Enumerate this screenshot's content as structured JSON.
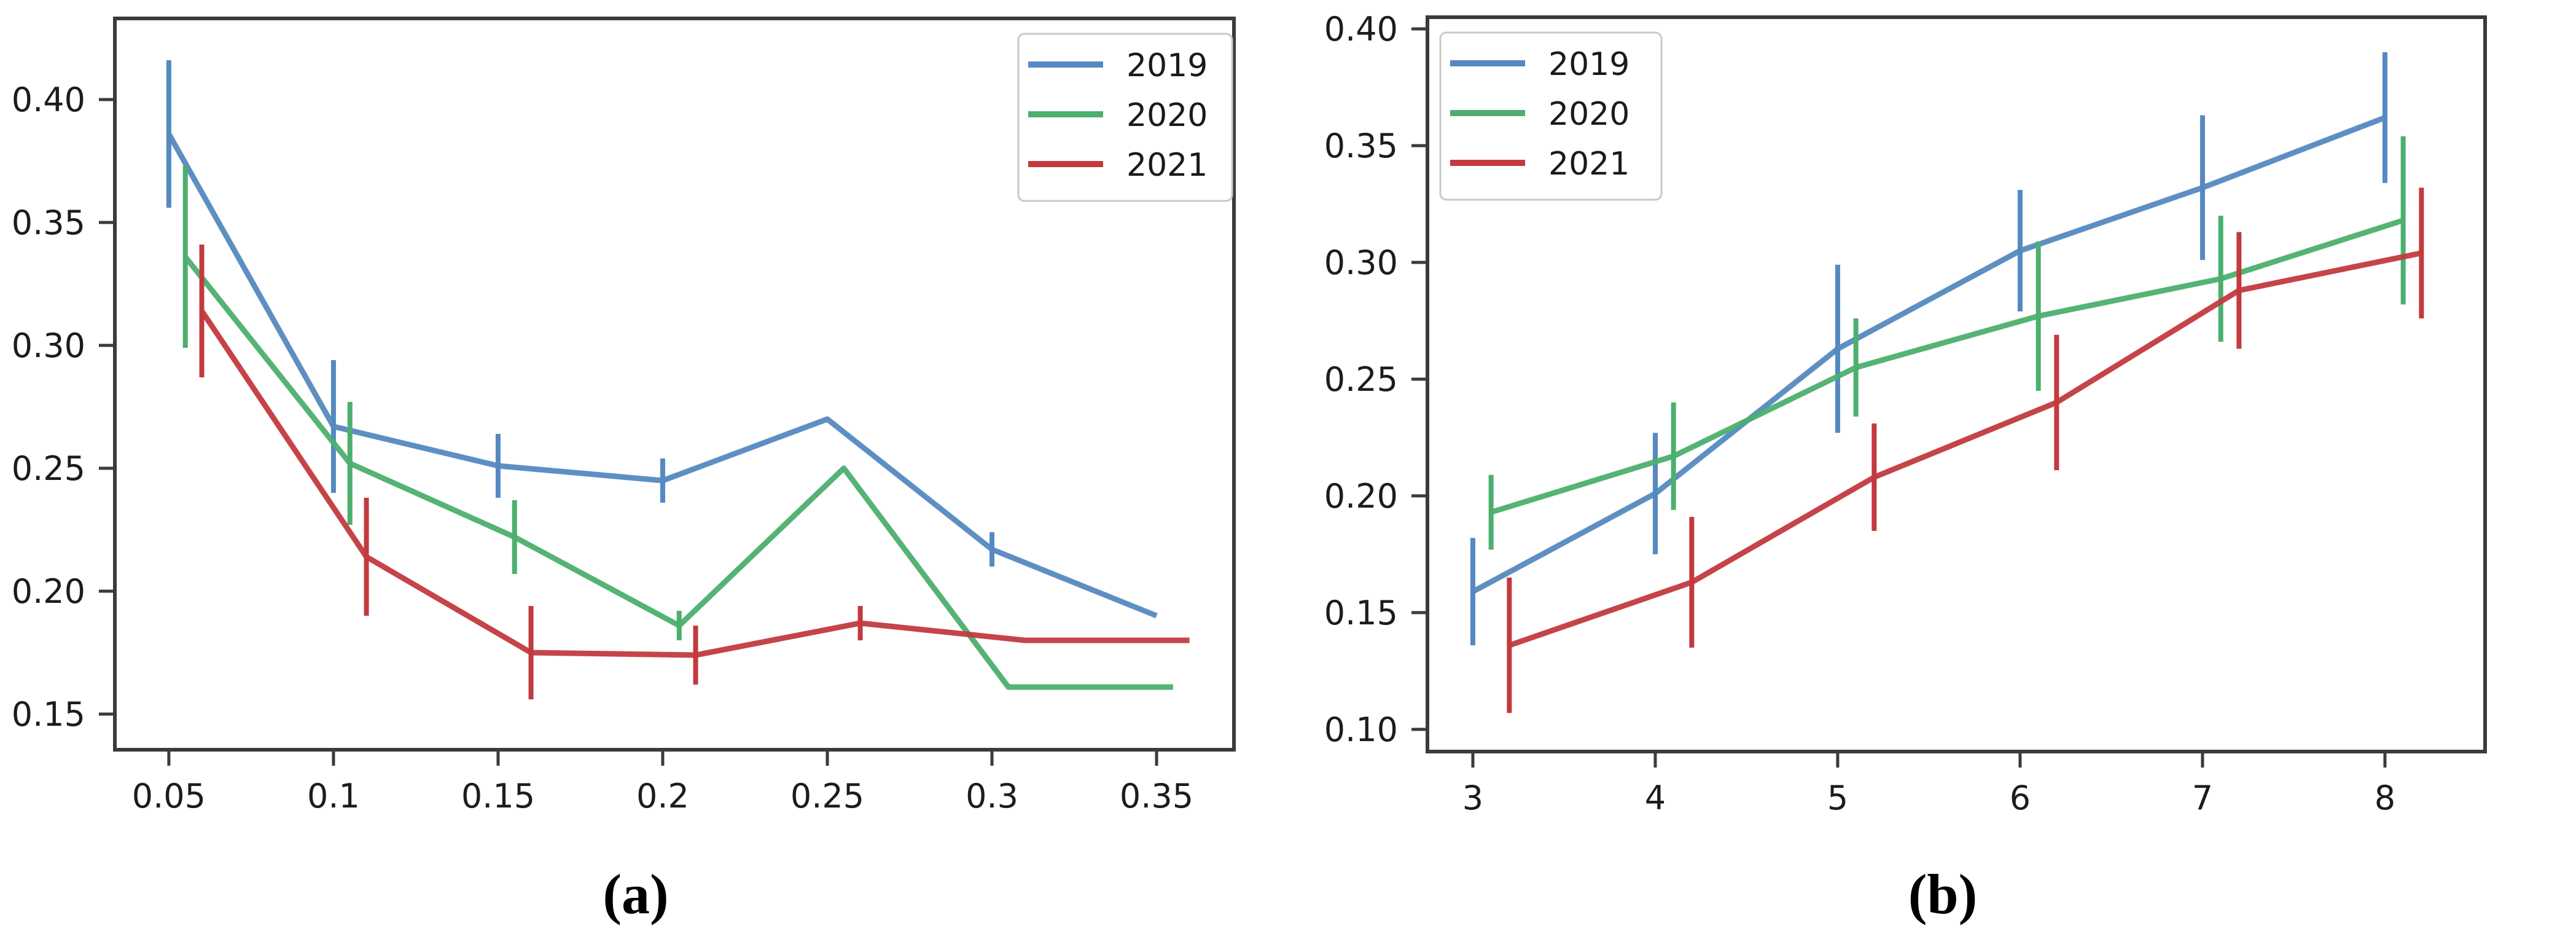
{
  "figure": {
    "background": "#ffffff",
    "axis_color": "#3b3b3b",
    "tick_label_color": "#1c1c1c",
    "legend_border_color": "#c9c9c9",
    "captions": {
      "a": "(a)",
      "b": "(b)"
    }
  },
  "chart_data": [
    {
      "id": "a",
      "type": "line",
      "caption": "(a)",
      "grid": false,
      "xlim": [
        0.0336,
        0.3735
      ],
      "ylim": [
        0.1355,
        0.433
      ],
      "xticks": [
        0.05,
        0.1,
        0.15,
        0.2,
        0.25,
        0.3,
        0.35
      ],
      "xtick_labels": [
        "0.05",
        "0.1",
        "0.15",
        "0.2",
        "0.25",
        "0.3",
        "0.35"
      ],
      "yticks": [
        0.15,
        0.2,
        0.25,
        0.3,
        0.35,
        0.4
      ],
      "ytick_labels": [
        "0.15",
        "0.20",
        "0.25",
        "0.30",
        "0.35",
        "0.40"
      ],
      "legend": {
        "position": "top-right",
        "entries": [
          "2019",
          "2020",
          "2021"
        ]
      },
      "series": [
        {
          "name": "2019",
          "color": "#5589c0",
          "x": [
            0.05,
            0.1,
            0.15,
            0.2,
            0.25,
            0.3,
            0.35
          ],
          "y": [
            0.386,
            0.267,
            0.251,
            0.245,
            0.27,
            0.217,
            0.19
          ],
          "yerr": [
            0.03,
            0.027,
            0.013,
            0.009,
            0,
            0.007,
            0
          ]
        },
        {
          "name": "2020",
          "color": "#4caf6e",
          "x": [
            0.055,
            0.105,
            0.155,
            0.205,
            0.255,
            0.305,
            0.355
          ],
          "y": [
            0.336,
            0.252,
            0.222,
            0.186,
            0.25,
            0.161,
            0.161
          ],
          "yerr": [
            0.037,
            0.025,
            0.015,
            0.006,
            0,
            0,
            0
          ]
        },
        {
          "name": "2021",
          "color": "#c23a3e",
          "x": [
            0.06,
            0.11,
            0.16,
            0.21,
            0.26,
            0.31,
            0.36
          ],
          "y": [
            0.314,
            0.214,
            0.175,
            0.174,
            0.187,
            0.18,
            0.18
          ],
          "yerr": [
            0.027,
            0.024,
            0.019,
            0.012,
            0.007,
            0,
            0
          ]
        }
      ]
    },
    {
      "id": "b",
      "type": "line",
      "caption": "(b)",
      "grid": false,
      "xlim": [
        2.751,
        8.549
      ],
      "ylim": [
        0.0905,
        0.405
      ],
      "xticks": [
        3,
        4,
        5,
        6,
        7,
        8
      ],
      "xtick_labels": [
        "3",
        "4",
        "5",
        "6",
        "7",
        "8"
      ],
      "yticks": [
        0.1,
        0.15,
        0.2,
        0.25,
        0.3,
        0.35,
        0.4
      ],
      "ytick_labels": [
        "0.10",
        "0.15",
        "0.20",
        "0.25",
        "0.30",
        "0.35",
        "0.40"
      ],
      "legend": {
        "position": "top-left",
        "entries": [
          "2019",
          "2020",
          "2021"
        ]
      },
      "series": [
        {
          "name": "2019",
          "color": "#5589c0",
          "x": [
            3,
            4,
            5,
            6,
            7,
            8
          ],
          "y": [
            0.159,
            0.201,
            0.263,
            0.305,
            0.332,
            0.362
          ],
          "yerr": [
            0.023,
            0.026,
            0.036,
            0.026,
            0.031,
            0.028
          ]
        },
        {
          "name": "2020",
          "color": "#4caf6e",
          "x": [
            3.1,
            4.1,
            5.1,
            6.1,
            7.1,
            8.1
          ],
          "y": [
            0.193,
            0.217,
            0.255,
            0.277,
            0.293,
            0.318
          ],
          "yerr": [
            0.016,
            0.023,
            0.021,
            0.032,
            0.027,
            0.036
          ]
        },
        {
          "name": "2021",
          "color": "#c23a3e",
          "x": [
            3.2,
            4.2,
            5.2,
            6.2,
            7.2,
            8.2
          ],
          "y": [
            0.136,
            0.163,
            0.208,
            0.24,
            0.288,
            0.304
          ],
          "yerr": [
            0.029,
            0.028,
            0.023,
            0.029,
            0.025,
            0.028
          ]
        }
      ]
    }
  ]
}
